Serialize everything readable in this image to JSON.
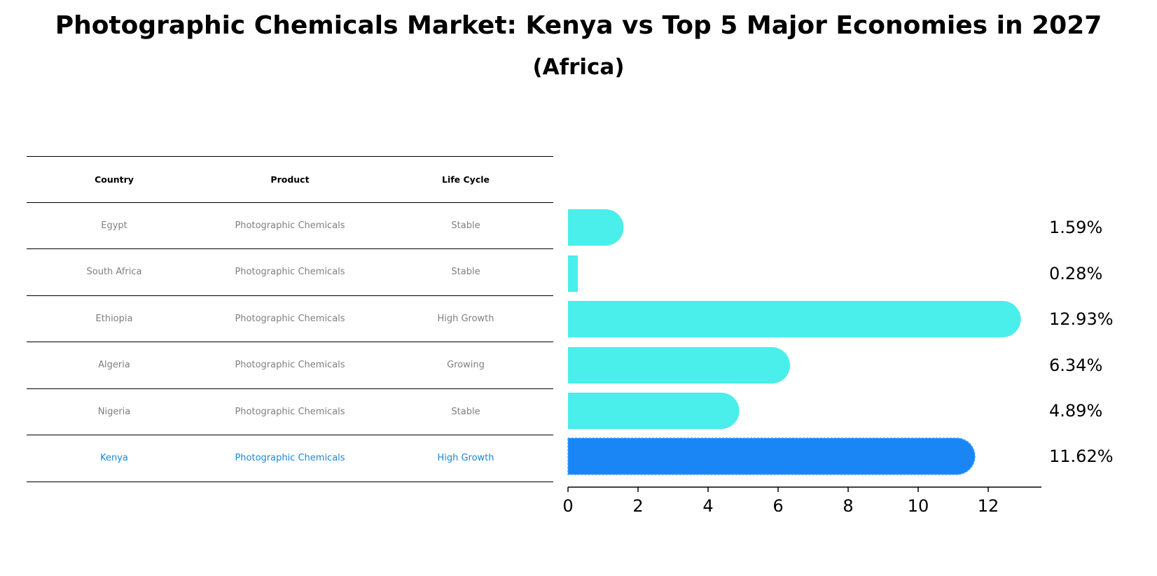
{
  "title": "Photographic Chemicals Market: Kenya vs Top 5 Major Economies in 2027",
  "subtitle": "(Africa)",
  "table": {
    "headers": [
      "Country",
      "Product",
      "Life Cycle"
    ],
    "rows": [
      [
        "Egypt",
        "Photographic Chemicals",
        "Stable"
      ],
      [
        "South Africa",
        "Photographic Chemicals",
        "Stable"
      ],
      [
        "Ethiopia",
        "Photographic Chemicals",
        "High Growth"
      ],
      [
        "Algeria",
        "Photographic Chemicals",
        "Growing"
      ],
      [
        "Nigeria",
        "Photographic Chemicals",
        "Stable"
      ],
      [
        "Kenya",
        "Photographic Chemicals",
        "High Growth"
      ]
    ],
    "highlight_row": 5
  },
  "colors": {
    "bar": "#4aeeea",
    "highlight_bar": "#1a86f5",
    "highlight_text": "#1b86d6",
    "table_text": "#7f7f7f"
  },
  "chart_data": {
    "type": "bar",
    "orientation": "horizontal",
    "categories": [
      "Egypt",
      "South Africa",
      "Ethiopia",
      "Algeria",
      "Nigeria",
      "Kenya"
    ],
    "values": [
      1.59,
      0.28,
      12.93,
      6.34,
      4.89,
      11.62
    ],
    "value_labels": [
      "1.59%",
      "0.28%",
      "12.93%",
      "6.34%",
      "4.89%",
      "11.62%"
    ],
    "highlight_index": 5,
    "xlim": [
      0,
      13.6
    ],
    "xticks": [
      0,
      2,
      4,
      6,
      8,
      10,
      12
    ],
    "xlabel": "",
    "ylabel": "",
    "grid": false,
    "legend": "none"
  }
}
